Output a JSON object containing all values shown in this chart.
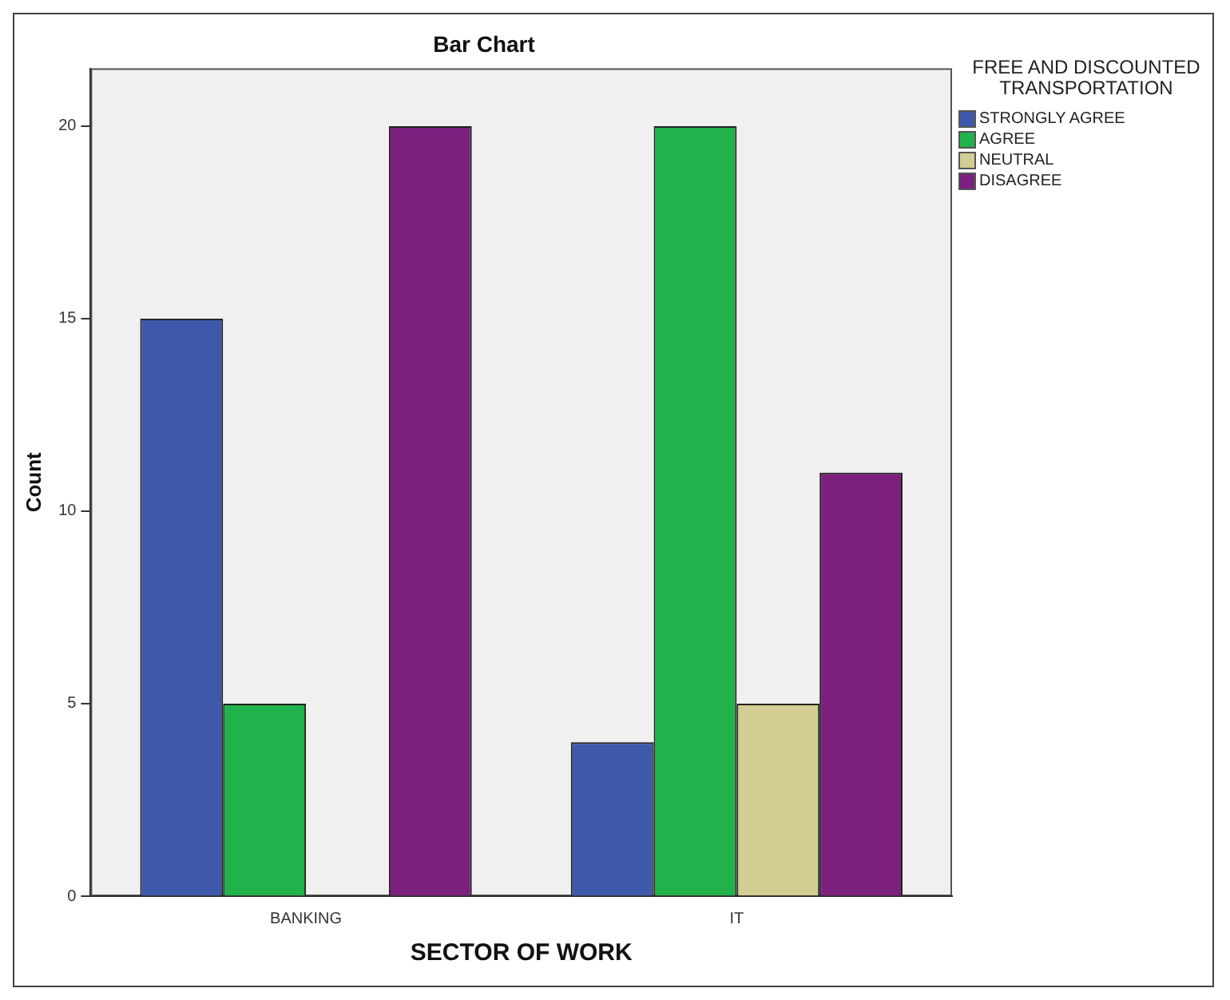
{
  "chart_data": {
    "type": "bar",
    "title": "Bar Chart",
    "xlabel": "SECTOR OF WORK",
    "ylabel": "Count",
    "legend_title": "FREE AND DISCOUNTED TRANSPORTATION",
    "categories": [
      "BANKING",
      "IT"
    ],
    "series": [
      {
        "name": "STRONGLY AGREE",
        "color": "#3e58ac",
        "values": [
          15,
          4
        ]
      },
      {
        "name": "AGREE",
        "color": "#22b24b",
        "values": [
          5,
          20
        ]
      },
      {
        "name": "NEUTRAL",
        "color": "#d2cd92",
        "values": [
          0,
          5
        ]
      },
      {
        "name": "DISAGREE",
        "color": "#7d1f7c",
        "values": [
          20,
          11
        ]
      }
    ],
    "ylim": [
      0,
      21.5
    ],
    "yticks": [
      0,
      5,
      10,
      15,
      20
    ],
    "grid": false,
    "legend": "right"
  }
}
